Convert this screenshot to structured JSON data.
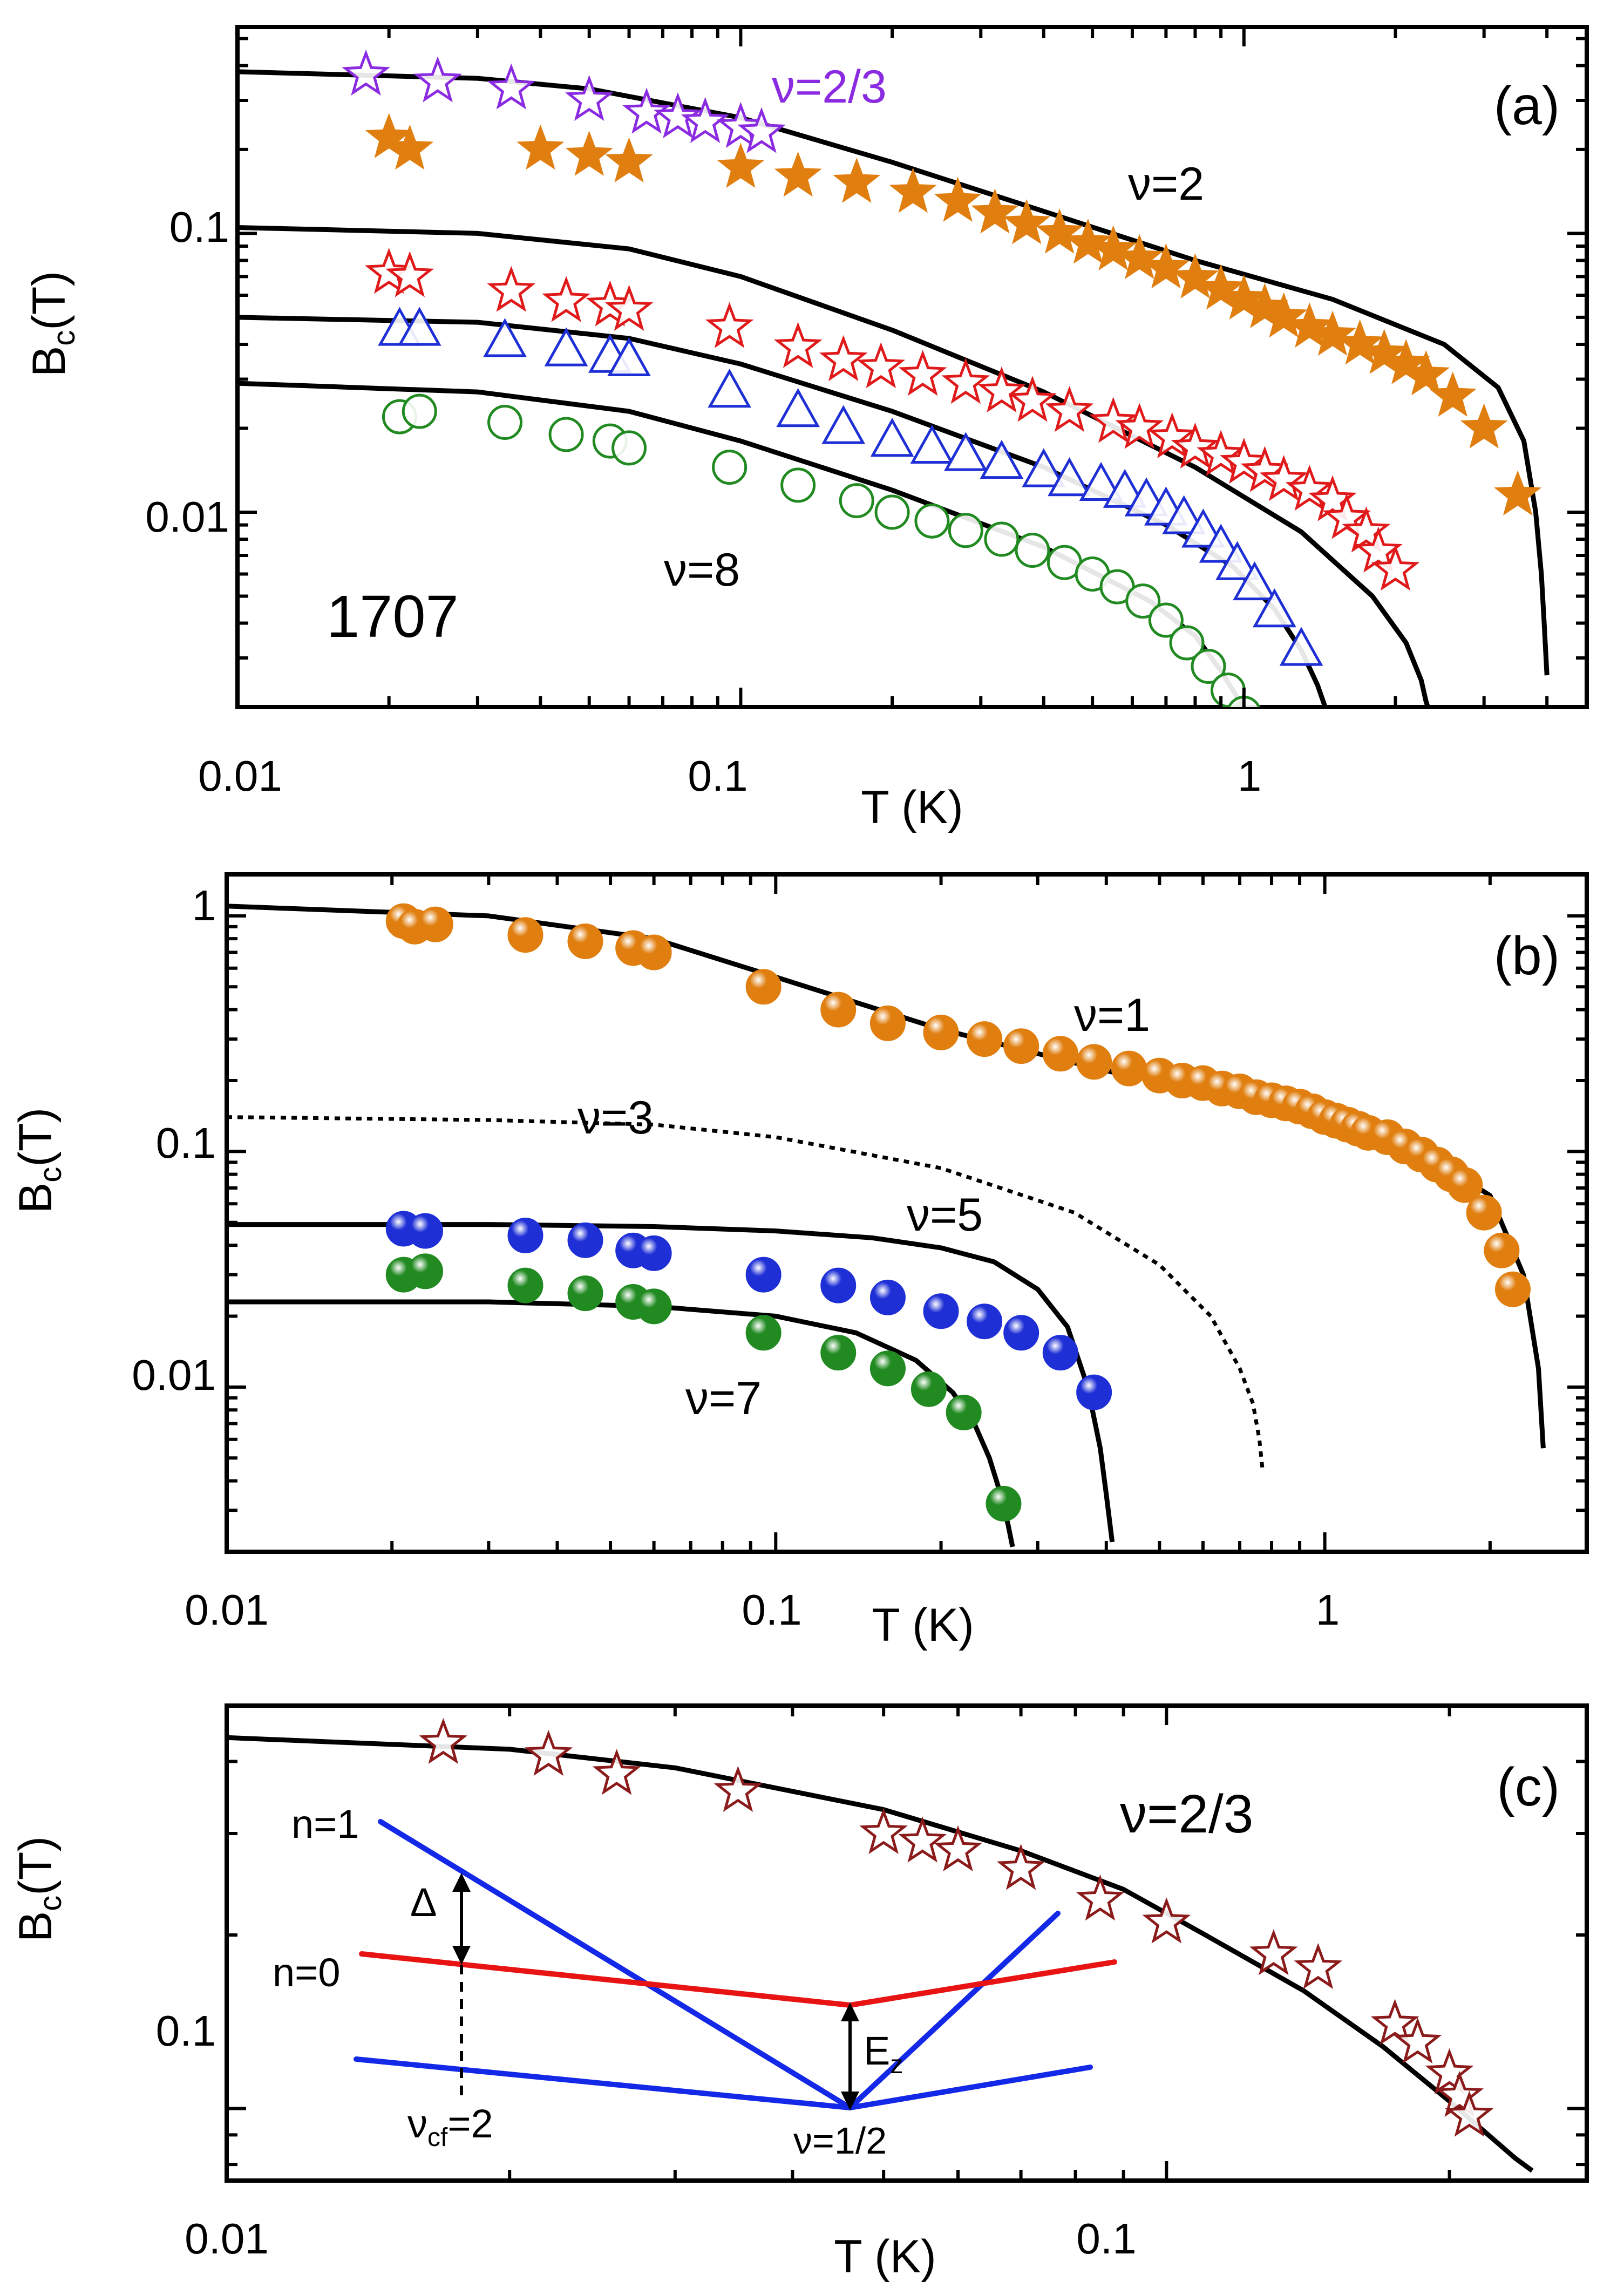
{
  "colors": {
    "axis": "#000000",
    "fit": "#000000",
    "purple": "#8a2be2",
    "orange": "#e07f10",
    "red": "#e01a1a",
    "blue": "#1e2fd6",
    "green": "#218a21",
    "brown": "#8b1a1a",
    "inset_blue": "#1428e8",
    "inset_red": "#e81414"
  },
  "chart_data": [
    {
      "id": "a",
      "type": "scatter",
      "panel_label": "(a)",
      "sample_label": "1707",
      "xlabel": "T (K)",
      "ylabel": "B_c(T)",
      "xscale": "log",
      "yscale": "log",
      "xlim": [
        0.01,
        4.8
      ],
      "ylim": [
        0.002,
        0.55
      ],
      "grid": false,
      "xticks": [
        {
          "v": 0.01,
          "label": "0.01"
        },
        {
          "v": 0.1,
          "label": "0.1"
        },
        {
          "v": 1,
          "label": "1"
        }
      ],
      "yticks": [
        {
          "v": 0.01,
          "label": "0.01"
        },
        {
          "v": 0.1,
          "label": "0.1"
        }
      ],
      "annotations": [
        {
          "text": "ν=2/3",
          "x": 0.25,
          "y": 0.39,
          "color": "purple"
        },
        {
          "text": "ν=2",
          "x": 0.62,
          "y": 0.108,
          "color": "axis"
        },
        {
          "text": "ν=8",
          "x": 0.13,
          "y": 0.0053,
          "color": "axis"
        }
      ],
      "series": [
        {
          "marker": "star-open",
          "color": "purple",
          "x": [
            0.018,
            0.025,
            0.035,
            0.05,
            0.065,
            0.075,
            0.085,
            0.1,
            0.11
          ],
          "y": [
            0.37,
            0.35,
            0.33,
            0.3,
            0.27,
            0.26,
            0.25,
            0.24,
            0.23
          ]
        },
        {
          "marker": "star-filled",
          "color": "orange",
          "x": [
            0.02,
            0.022,
            0.04,
            0.05,
            0.06,
            0.1,
            0.13,
            0.17,
            0.22,
            0.27,
            0.32,
            0.37,
            0.43,
            0.49,
            0.55,
            0.62,
            0.7,
            0.8,
            0.9,
            1.0,
            1.1,
            1.2,
            1.35,
            1.5,
            1.7,
            1.9,
            2.1,
            2.3,
            2.6,
            3.0,
            3.5
          ],
          "y": [
            0.22,
            0.2,
            0.2,
            0.19,
            0.18,
            0.172,
            0.16,
            0.152,
            0.14,
            0.13,
            0.118,
            0.108,
            0.1,
            0.092,
            0.087,
            0.081,
            0.075,
            0.069,
            0.063,
            0.058,
            0.054,
            0.05,
            0.046,
            0.043,
            0.04,
            0.037,
            0.034,
            0.031,
            0.026,
            0.02,
            0.0115
          ]
        },
        {
          "marker": "star-open",
          "color": "red",
          "x": [
            0.02,
            0.022,
            0.035,
            0.045,
            0.055,
            0.06,
            0.095,
            0.13,
            0.16,
            0.19,
            0.23,
            0.28,
            0.33,
            0.38,
            0.45,
            0.55,
            0.62,
            0.72,
            0.8,
            0.9,
            1.0,
            1.1,
            1.2,
            1.35,
            1.5,
            1.6,
            1.75,
            1.85,
            2.0
          ],
          "y": [
            0.072,
            0.07,
            0.062,
            0.057,
            0.055,
            0.053,
            0.046,
            0.039,
            0.035,
            0.033,
            0.031,
            0.029,
            0.027,
            0.025,
            0.023,
            0.021,
            0.02,
            0.0185,
            0.017,
            0.016,
            0.015,
            0.014,
            0.013,
            0.012,
            0.011,
            0.0095,
            0.0085,
            0.0072,
            0.0062
          ]
        },
        {
          "marker": "triangle-open",
          "color": "blue",
          "x": [
            0.021,
            0.023,
            0.034,
            0.045,
            0.055,
            0.06,
            0.095,
            0.13,
            0.16,
            0.2,
            0.24,
            0.28,
            0.33,
            0.4,
            0.45,
            0.52,
            0.58,
            0.64,
            0.7,
            0.76,
            0.83,
            0.9,
            0.97,
            1.05,
            1.15,
            1.3
          ],
          "y": [
            0.045,
            0.045,
            0.041,
            0.038,
            0.036,
            0.035,
            0.027,
            0.023,
            0.02,
            0.018,
            0.017,
            0.016,
            0.015,
            0.014,
            0.013,
            0.0125,
            0.0118,
            0.011,
            0.0102,
            0.0095,
            0.0085,
            0.0075,
            0.0065,
            0.0055,
            0.0044,
            0.0032
          ]
        },
        {
          "marker": "circle-open",
          "color": "green",
          "x": [
            0.021,
            0.023,
            0.034,
            0.045,
            0.055,
            0.06,
            0.095,
            0.13,
            0.17,
            0.2,
            0.24,
            0.28,
            0.33,
            0.38,
            0.44,
            0.5,
            0.56,
            0.63,
            0.7,
            0.77,
            0.85,
            0.93,
            1.0
          ],
          "y": [
            0.022,
            0.023,
            0.021,
            0.019,
            0.018,
            0.017,
            0.0145,
            0.0125,
            0.011,
            0.01,
            0.0093,
            0.0086,
            0.008,
            0.0073,
            0.0066,
            0.006,
            0.0054,
            0.0048,
            0.0041,
            0.0034,
            0.0028,
            0.0023,
            0.0019
          ]
        }
      ],
      "fit_curves": [
        {
          "dashed": false,
          "x": [
            0.01,
            0.03,
            0.05,
            0.1,
            0.2,
            0.4,
            0.8,
            1.5,
            2.5,
            3.2,
            3.6,
            3.8,
            3.9,
            3.95,
            4.0
          ],
          "y": [
            0.38,
            0.36,
            0.33,
            0.26,
            0.18,
            0.12,
            0.08,
            0.058,
            0.04,
            0.028,
            0.018,
            0.01,
            0.006,
            0.004,
            0.0026
          ]
        },
        {
          "dashed": false,
          "x": [
            0.01,
            0.03,
            0.06,
            0.1,
            0.2,
            0.4,
            0.8,
            1.3,
            1.8,
            2.1,
            2.25,
            2.3,
            2.32
          ],
          "y": [
            0.105,
            0.1,
            0.088,
            0.07,
            0.045,
            0.027,
            0.0145,
            0.0085,
            0.005,
            0.0034,
            0.0025,
            0.0021,
            0.002
          ]
        },
        {
          "dashed": false,
          "x": [
            0.01,
            0.03,
            0.06,
            0.1,
            0.2,
            0.4,
            0.7,
            0.95,
            1.15,
            1.3,
            1.4,
            1.45
          ],
          "y": [
            0.05,
            0.048,
            0.042,
            0.034,
            0.023,
            0.0145,
            0.009,
            0.0064,
            0.0045,
            0.0032,
            0.0024,
            0.002
          ]
        },
        {
          "dashed": false,
          "x": [
            0.01,
            0.03,
            0.06,
            0.1,
            0.2,
            0.4,
            0.65,
            0.8,
            0.9,
            0.98,
            1.02
          ],
          "y": [
            0.029,
            0.027,
            0.023,
            0.018,
            0.012,
            0.0075,
            0.0048,
            0.0036,
            0.0027,
            0.0021,
            0.0019
          ]
        }
      ]
    },
    {
      "id": "b",
      "type": "scatter",
      "panel_label": "(b)",
      "xlabel": "T (K)",
      "ylabel": "B_c(T)",
      "xscale": "log",
      "yscale": "log",
      "xlim": [
        0.01,
        3.0
      ],
      "ylim": [
        0.002,
        1.5
      ],
      "grid": false,
      "xticks": [
        {
          "v": 0.01,
          "label": "0.01"
        },
        {
          "v": 0.1,
          "label": "0.1"
        },
        {
          "v": 1,
          "label": "1"
        }
      ],
      "yticks": [
        {
          "v": 0.01,
          "label": "0.01"
        },
        {
          "v": 0.1,
          "label": "0.1"
        },
        {
          "v": 1,
          "label": "1"
        }
      ],
      "annotations": [
        {
          "text": "ν=1",
          "x": 0.78,
          "y": 0.38,
          "color": "axis"
        },
        {
          "text": "ν=3",
          "x": 0.038,
          "y": 0.11,
          "color": "axis"
        },
        {
          "text": "ν=5",
          "x": 0.27,
          "y": 0.039,
          "color": "axis"
        },
        {
          "text": "ν=7",
          "x": 0.055,
          "y": 0.0075,
          "color": "axis"
        }
      ],
      "series": [
        {
          "marker": "ball",
          "color": "orange",
          "x": [
            0.021,
            0.022,
            0.024,
            0.035,
            0.045,
            0.055,
            0.06,
            0.095,
            0.13,
            0.16,
            0.2,
            0.24,
            0.28,
            0.33,
            0.38,
            0.44,
            0.5,
            0.55,
            0.6,
            0.65,
            0.7,
            0.75,
            0.8,
            0.85,
            0.9,
            0.95,
            1.0,
            1.05,
            1.1,
            1.15,
            1.2,
            1.3,
            1.4,
            1.5,
            1.6,
            1.7,
            1.8,
            1.95,
            2.1,
            2.2
          ],
          "y": [
            0.95,
            0.9,
            0.92,
            0.83,
            0.78,
            0.73,
            0.7,
            0.5,
            0.4,
            0.35,
            0.32,
            0.3,
            0.28,
            0.26,
            0.24,
            0.225,
            0.21,
            0.2,
            0.195,
            0.185,
            0.18,
            0.17,
            0.165,
            0.16,
            0.155,
            0.148,
            0.14,
            0.135,
            0.13,
            0.125,
            0.12,
            0.115,
            0.105,
            0.097,
            0.088,
            0.08,
            0.072,
            0.055,
            0.038,
            0.026
          ]
        },
        {
          "marker": "ball",
          "color": "blue",
          "x": [
            0.021,
            0.023,
            0.035,
            0.045,
            0.055,
            0.06,
            0.095,
            0.13,
            0.16,
            0.2,
            0.24,
            0.28,
            0.33,
            0.38
          ],
          "y": [
            0.047,
            0.046,
            0.044,
            0.042,
            0.038,
            0.037,
            0.03,
            0.027,
            0.024,
            0.021,
            0.019,
            0.017,
            0.014,
            0.0095
          ]
        },
        {
          "marker": "ball",
          "color": "green",
          "x": [
            0.021,
            0.023,
            0.035,
            0.045,
            0.055,
            0.06,
            0.095,
            0.13,
            0.16,
            0.19,
            0.22,
            0.26
          ],
          "y": [
            0.03,
            0.031,
            0.027,
            0.025,
            0.023,
            0.022,
            0.017,
            0.014,
            0.012,
            0.0098,
            0.0078,
            0.0032
          ]
        }
      ],
      "fit_curves": [
        {
          "dashed": false,
          "x": [
            0.01,
            0.03,
            0.06,
            0.1,
            0.2,
            0.4,
            0.8,
            1.4,
            2.0,
            2.3,
            2.45,
            2.5
          ],
          "y": [
            1.1,
            1.0,
            0.8,
            0.55,
            0.33,
            0.22,
            0.16,
            0.11,
            0.065,
            0.03,
            0.012,
            0.0055
          ]
        },
        {
          "dashed": true,
          "x": [
            0.01,
            0.03,
            0.06,
            0.1,
            0.2,
            0.35,
            0.5,
            0.62,
            0.7,
            0.74,
            0.76,
            0.77
          ],
          "y": [
            0.14,
            0.136,
            0.13,
            0.115,
            0.085,
            0.055,
            0.033,
            0.02,
            0.012,
            0.0085,
            0.006,
            0.0045
          ]
        },
        {
          "dashed": false,
          "x": [
            0.01,
            0.03,
            0.06,
            0.1,
            0.15,
            0.2,
            0.25,
            0.3,
            0.34,
            0.37,
            0.39,
            0.4,
            0.41
          ],
          "y": [
            0.049,
            0.049,
            0.048,
            0.046,
            0.043,
            0.039,
            0.034,
            0.026,
            0.018,
            0.01,
            0.0055,
            0.0035,
            0.0022
          ]
        },
        {
          "dashed": false,
          "x": [
            0.01,
            0.03,
            0.06,
            0.1,
            0.14,
            0.18,
            0.21,
            0.23,
            0.245,
            0.255,
            0.265,
            0.27
          ],
          "y": [
            0.023,
            0.023,
            0.022,
            0.02,
            0.017,
            0.013,
            0.0095,
            0.007,
            0.005,
            0.0037,
            0.0026,
            0.0021
          ]
        }
      ]
    },
    {
      "id": "c",
      "type": "scatter",
      "panel_label": "(c)",
      "xlabel": "T (K)",
      "ylabel": "B_c(T)",
      "xscale": "log",
      "yscale": "log",
      "xlim": [
        0.01,
        0.28
      ],
      "ylim": [
        0.075,
        0.5
      ],
      "grid": false,
      "xticks": [
        {
          "v": 0.01,
          "label": "0.01"
        },
        {
          "v": 0.1,
          "label": "0.1"
        }
      ],
      "yticks": [
        {
          "v": 0.1,
          "label": "0.1"
        }
      ],
      "annotations": [
        {
          "text": "ν=2/3",
          "x": 0.1,
          "y": 0.35,
          "color": "axis"
        }
      ],
      "series": [
        {
          "marker": "star-open",
          "color": "brown",
          "x": [
            0.017,
            0.022,
            0.026,
            0.035,
            0.05,
            0.055,
            0.06,
            0.07,
            0.085,
            0.1,
            0.13,
            0.145,
            0.175,
            0.185,
            0.2,
            0.205,
            0.21
          ],
          "y": [
            0.43,
            0.41,
            0.38,
            0.355,
            0.3,
            0.29,
            0.28,
            0.26,
            0.23,
            0.21,
            0.185,
            0.175,
            0.14,
            0.13,
            0.115,
            0.105,
            0.097
          ]
        }
      ],
      "fit_curves": [
        {
          "dashed": false,
          "x": [
            0.01,
            0.02,
            0.03,
            0.05,
            0.07,
            0.09,
            0.11,
            0.14,
            0.17,
            0.2,
            0.22,
            0.235,
            0.245
          ],
          "y": [
            0.44,
            0.42,
            0.39,
            0.33,
            0.28,
            0.24,
            0.2,
            0.16,
            0.128,
            0.103,
            0.09,
            0.082,
            0.078
          ]
        }
      ],
      "inset": {
        "labels": {
          "n1": "n=1",
          "n0": "n=0",
          "delta": "Δ",
          "nu_cf": "ν",
          "nu_cf_sub": "cf",
          "nu_cf_value": "=2",
          "nu_half": "ν=1/2",
          "ez": "E",
          "ez_sub": "z"
        }
      }
    }
  ]
}
